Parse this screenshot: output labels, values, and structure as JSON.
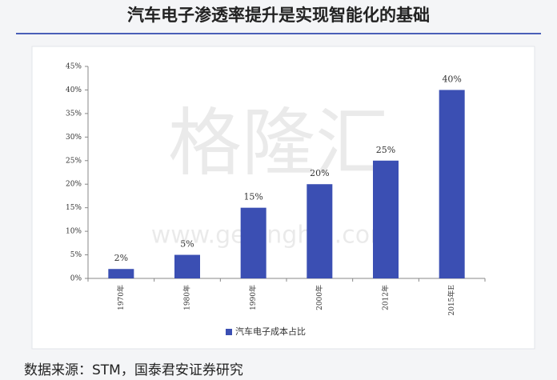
{
  "chart_data": {
    "type": "bar",
    "title": "汽车电子渗透率提升是实现智能化的基础",
    "categories": [
      "1970年",
      "1980年",
      "1990年",
      "2000年",
      "2012年",
      "2015年E"
    ],
    "series": [
      {
        "name": "汽车电子成本占比",
        "color": "#3b4fb3",
        "values": [
          2,
          5,
          15,
          20,
          25,
          40
        ],
        "value_labels": [
          "2%",
          "5%",
          "15%",
          "20%",
          "25%",
          "40%"
        ]
      }
    ],
    "ylim": [
      0,
      45
    ],
    "yticks": [
      {
        "value": 0,
        "label": "0%"
      },
      {
        "value": 5,
        "label": "5%"
      },
      {
        "value": 10,
        "label": "10%"
      },
      {
        "value": 15,
        "label": "15%"
      },
      {
        "value": 20,
        "label": "20%"
      },
      {
        "value": 25,
        "label": "25%"
      },
      {
        "value": 30,
        "label": "30%"
      },
      {
        "value": 35,
        "label": "35%"
      },
      {
        "value": 40,
        "label": "40%"
      },
      {
        "value": 45,
        "label": "45%"
      }
    ],
    "legend": "bottom",
    "watermark": [
      "格隆汇",
      "www.gelonghui.com"
    ],
    "source": "数据来源：STM，国泰君安证券研究"
  }
}
